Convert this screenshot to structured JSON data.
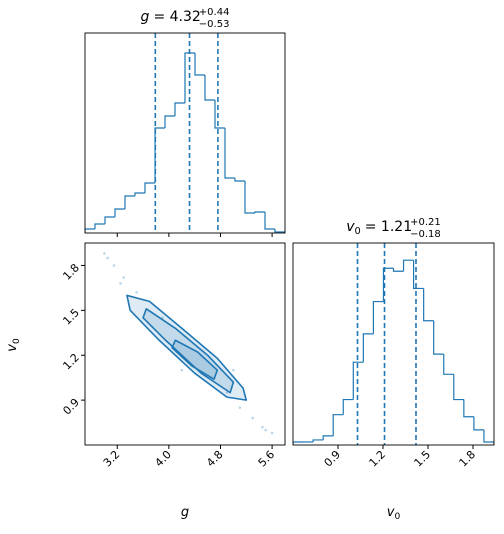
{
  "chart_data": [
    {
      "type": "histogram",
      "title": {
        "symbol": "g",
        "value": "= 4.32",
        "plus": "+0.44",
        "minus": "−0.53"
      },
      "bins": [
        2.7,
        2.855,
        3.01,
        3.165,
        3.32,
        3.475,
        3.63,
        3.785,
        3.94,
        4.095,
        4.25,
        4.405,
        4.56,
        4.715,
        4.87,
        5.025,
        5.18,
        5.335,
        5.49,
        5.645,
        5.8
      ],
      "values": [
        4,
        9,
        16,
        24,
        37,
        40,
        50,
        105,
        117,
        130,
        180,
        158,
        133,
        105,
        55,
        52,
        20,
        21,
        4,
        1
      ],
      "quantiles": [
        3.79,
        4.32,
        4.76
      ],
      "color": "#1f77b4",
      "xlim": [
        2.7,
        5.8
      ],
      "ylim": [
        0,
        200
      ],
      "xticks": [
        3.2,
        4,
        4.8,
        5.6
      ],
      "xticklabels": false
    },
    {
      "type": "histogram",
      "title": {
        "symbol": "v",
        "sub": "0",
        "value": "= 1.21",
        "plus": "+0.21",
        "minus": "−0.18"
      },
      "xlabel": {
        "symbol": "v",
        "sub": "0"
      },
      "bins": [
        0.6,
        0.667,
        0.734,
        0.801,
        0.868,
        0.935,
        1.002,
        1.069,
        1.136,
        1.203,
        1.27,
        1.337,
        1.404,
        1.471,
        1.538,
        1.605,
        1.672,
        1.739,
        1.806,
        1.873,
        1.94
      ],
      "values": [
        3,
        3,
        5,
        9,
        30,
        45,
        82,
        110,
        142,
        175,
        172,
        183,
        155,
        123,
        90,
        70,
        45,
        28,
        15,
        3
      ],
      "quantiles": [
        1.03,
        1.21,
        1.42
      ],
      "color": "#1f77b4",
      "xlim": [
        0.6,
        1.94
      ],
      "ylim": [
        0,
        200
      ],
      "xticks": [
        0.9,
        1.2,
        1.5,
        1.8
      ],
      "xticklabels": true
    },
    {
      "type": "contour",
      "xlabel": {
        "symbol": "g"
      },
      "ylabel": {
        "symbol": "v",
        "sub": "0"
      },
      "color": "#1f77b4",
      "xlim": [
        2.7,
        5.8
      ],
      "ylim": [
        0.6,
        1.95
      ],
      "xticks": [
        3.2,
        {
          "value": 4,
          "label": "4.0"
        },
        4.8,
        5.6
      ],
      "yticks": [
        0.9,
        1.2,
        1.5,
        1.8
      ],
      "contours": [
        {
          "x": [
            3.35,
            3.7,
            4.2,
            4.75,
            5.15,
            5.2,
            4.9,
            4.4,
            3.85,
            3.4
          ],
          "y": [
            1.6,
            1.56,
            1.38,
            1.18,
            0.98,
            0.9,
            0.92,
            1.08,
            1.3,
            1.5
          ]
        },
        {
          "x": [
            3.65,
            4.1,
            4.6,
            5.0,
            4.95,
            4.5,
            3.95,
            3.6
          ],
          "y": [
            1.51,
            1.38,
            1.2,
            1.02,
            0.95,
            1.08,
            1.3,
            1.45
          ]
        },
        {
          "x": [
            4.1,
            4.45,
            4.75,
            4.7,
            4.35,
            4.05
          ],
          "y": [
            1.3,
            1.22,
            1.1,
            1.04,
            1.13,
            1.25
          ]
        }
      ],
      "points": {
        "x": [
          3.05,
          3.15,
          3.3,
          3.5,
          3.25,
          5.3,
          5.45,
          5.6,
          5.1,
          3.9,
          4.9,
          5.5,
          3.0,
          4.2,
          5.0
        ],
        "y": [
          1.85,
          1.8,
          1.72,
          1.62,
          1.68,
          0.78,
          0.72,
          0.68,
          0.85,
          1.45,
          0.95,
          0.7,
          1.88,
          1.1,
          1.1
        ]
      }
    }
  ]
}
